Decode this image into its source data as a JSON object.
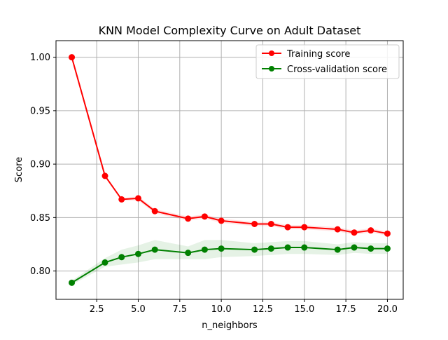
{
  "chart_data": {
    "type": "line",
    "title": "KNN Model Complexity Curve on Adult Dataset",
    "xlabel": "n_neighbors",
    "ylabel": "Score",
    "xlim": [
      0.05,
      20.95
    ],
    "ylim": [
      0.7735,
      1.0155
    ],
    "xticks": [
      2.5,
      5.0,
      7.5,
      10.0,
      12.5,
      15.0,
      17.5,
      20.0
    ],
    "xtick_labels": [
      "2.5",
      "5.0",
      "7.5",
      "10.0",
      "12.5",
      "15.0",
      "17.5",
      "20.0"
    ],
    "yticks": [
      0.8,
      0.85,
      0.9,
      0.95,
      1.0
    ],
    "ytick_labels": [
      "0.80",
      "0.85",
      "0.90",
      "0.95",
      "1.00"
    ],
    "grid": true,
    "legend_position": "top-right",
    "x": [
      1,
      3,
      4,
      5,
      6,
      8,
      9,
      10,
      12,
      13,
      14,
      15,
      17,
      18,
      19,
      20
    ],
    "series": [
      {
        "name": "Training score",
        "color": "#ff0000",
        "marker": "circle",
        "values": [
          1.0,
          0.889,
          0.867,
          0.868,
          0.856,
          0.849,
          0.851,
          0.847,
          0.844,
          0.844,
          0.841,
          0.841,
          0.839,
          0.836,
          0.838,
          0.835
        ],
        "band": [
          0.0,
          0.001,
          0.001,
          0.002,
          0.002,
          0.002,
          0.002,
          0.002,
          0.002,
          0.002,
          0.002,
          0.002,
          0.002,
          0.002,
          0.002,
          0.002
        ]
      },
      {
        "name": "Cross-validation score",
        "color": "#008000",
        "marker": "circle",
        "values": [
          0.789,
          0.808,
          0.813,
          0.816,
          0.82,
          0.817,
          0.82,
          0.821,
          0.82,
          0.821,
          0.822,
          0.822,
          0.82,
          0.822,
          0.821,
          0.821
        ],
        "band": [
          0.002,
          0.004,
          0.007,
          0.008,
          0.009,
          0.006,
          0.009,
          0.008,
          0.006,
          0.006,
          0.006,
          0.006,
          0.005,
          0.005,
          0.005,
          0.005
        ]
      }
    ]
  }
}
